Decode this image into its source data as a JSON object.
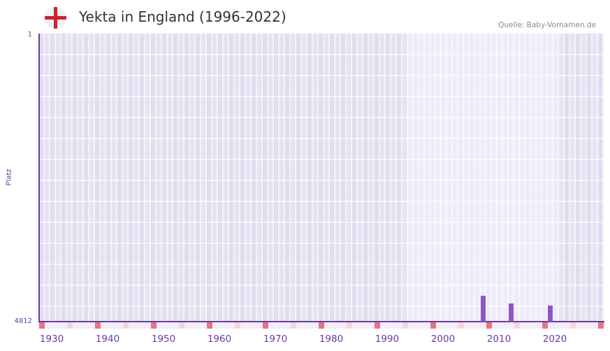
{
  "header": {
    "title": "Yekta in England (1996-2022)",
    "source": "Quelle: Baby-Vornamen.de",
    "flag_icon": "england-flag-icon"
  },
  "colors": {
    "bar": "#8b56c8",
    "axis": "#6a3d9a",
    "plot_bg": "#e4e0ee",
    "highlight_bg": "#efebf9",
    "tick_decade": "#e57580",
    "tick_half": "#f5d6df",
    "tick_other": "#f2eefb"
  },
  "chart_data": {
    "type": "bar",
    "title": "Yekta in England (1996-2022)",
    "xlabel": "",
    "ylabel": "Platz",
    "x_range": [
      1930,
      2030
    ],
    "highlight_range": [
      1996,
      2022
    ],
    "y_axis_inverted": true,
    "ylim": [
      1,
      4812
    ],
    "yticks": [
      "1",
      "4812"
    ],
    "xticks": [
      "1930",
      "1940",
      "1950",
      "1960",
      "1970",
      "1980",
      "1990",
      "2000",
      "2010",
      "2020"
    ],
    "categories": [
      "2009",
      "2014",
      "2021"
    ],
    "values": [
      4380,
      4508,
      4543
    ],
    "grid": true,
    "legend": null
  }
}
